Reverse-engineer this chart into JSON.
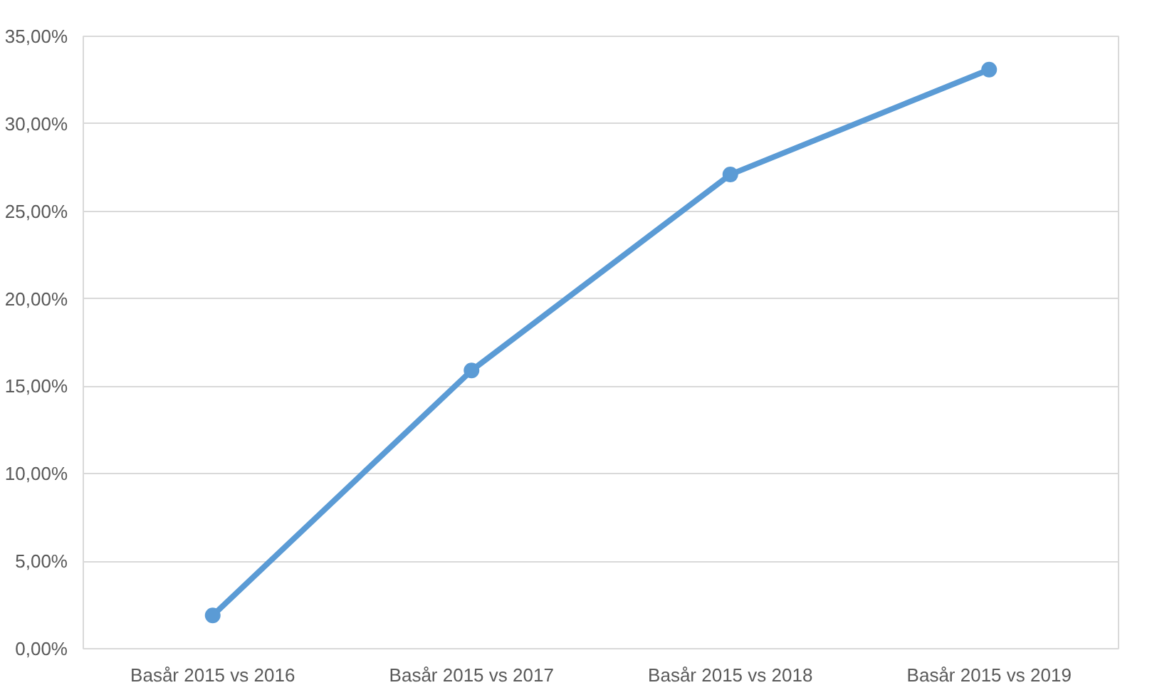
{
  "chart_data": {
    "type": "line",
    "categories": [
      "Basår 2015 vs 2016",
      "Basår 2015 vs 2017",
      "Basår 2015 vs 2018",
      "Basår 2015 vs 2019"
    ],
    "series": [
      {
        "color": "#5b9bd5",
        "values": [
          1.9,
          15.9,
          27.1,
          33.1
        ]
      }
    ],
    "ylim": [
      0,
      35
    ],
    "yticks": [
      {
        "value": 0,
        "label": "0,00%"
      },
      {
        "value": 5,
        "label": "5,00%"
      },
      {
        "value": 10,
        "label": "10,00%"
      },
      {
        "value": 15,
        "label": "15,00%"
      },
      {
        "value": 20,
        "label": "20,00%"
      },
      {
        "value": 25,
        "label": "25,00%"
      },
      {
        "value": 30,
        "label": "30,00%"
      },
      {
        "value": 35,
        "label": "35,00%"
      }
    ],
    "grid": "y",
    "marker": "circle",
    "line_style": "solid"
  }
}
